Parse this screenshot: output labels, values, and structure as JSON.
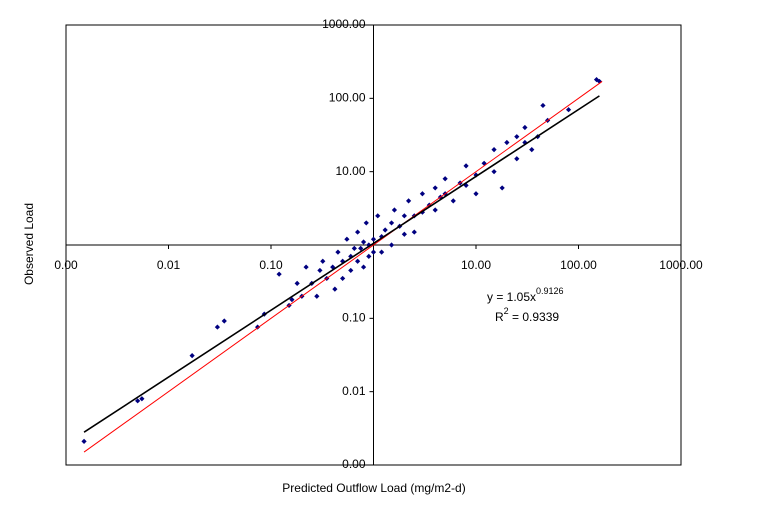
{
  "chart_data": {
    "type": "scatter",
    "xlabel": "Predicted Outflow Load  (mg/m2-d)",
    "ylabel": "Observed Load",
    "log_x": true,
    "log_y": true,
    "axes_cross": [
      1,
      1
    ],
    "xlim": [
      0.001,
      1000
    ],
    "ylim": [
      0.001,
      1000
    ],
    "xticks": [
      {
        "value": 0.001,
        "label": "0.00"
      },
      {
        "value": 0.01,
        "label": "0.01"
      },
      {
        "value": 0.1,
        "label": "0.10"
      },
      {
        "value": 10,
        "label": "10.00"
      },
      {
        "value": 100,
        "label": "100.00"
      },
      {
        "value": 1000,
        "label": "1000.00"
      }
    ],
    "yticks": [
      {
        "value": 0.001,
        "label": "0.00"
      },
      {
        "value": 0.01,
        "label": "0.01"
      },
      {
        "value": 0.1,
        "label": "0.10"
      },
      {
        "value": 10,
        "label": "10.00"
      },
      {
        "value": 100,
        "label": "100.00"
      },
      {
        "value": 1000,
        "label": "1000.00"
      }
    ],
    "series": [
      {
        "color": "#000080",
        "x": [
          0.0015,
          0.005,
          0.0055,
          0.017,
          0.03,
          0.035,
          0.074,
          0.086,
          0.12,
          0.15,
          0.16,
          0.18,
          0.2,
          0.22,
          0.25,
          0.28,
          0.3,
          0.32,
          0.35,
          0.4,
          0.42,
          0.45,
          0.5,
          0.5,
          0.55,
          0.6,
          0.6,
          0.65,
          0.7,
          0.7,
          0.75,
          0.8,
          0.8,
          0.85,
          0.9,
          0.9,
          1.0,
          1.0,
          1.1,
          1.2,
          1.2,
          1.3,
          1.5,
          1.5,
          1.6,
          1.8,
          2.0,
          2.0,
          2.2,
          2.5,
          2.5,
          3.0,
          3.0,
          3.5,
          4.0,
          4.0,
          4.5,
          5.0,
          5.0,
          6.0,
          7.0,
          8.0,
          8.0,
          10,
          10,
          12,
          15,
          15,
          18,
          20,
          25,
          25,
          30,
          30,
          35,
          40,
          45,
          50,
          80,
          150,
          160
        ],
        "values": [
          0.0021,
          0.0075,
          0.008,
          0.031,
          0.076,
          0.092,
          0.076,
          0.114,
          0.4,
          0.15,
          0.18,
          0.3,
          0.2,
          0.5,
          0.3,
          0.2,
          0.45,
          0.6,
          0.35,
          0.5,
          0.25,
          0.8,
          0.6,
          0.35,
          1.2,
          0.7,
          0.45,
          0.9,
          1.5,
          0.6,
          0.9,
          1.1,
          0.5,
          2.0,
          1.0,
          0.7,
          1.2,
          0.8,
          2.5,
          1.3,
          0.8,
          1.6,
          2.0,
          1.0,
          3.0,
          1.8,
          2.5,
          1.4,
          4.0,
          2.5,
          1.5,
          5.0,
          2.8,
          3.5,
          6.0,
          3.0,
          4.5,
          5.0,
          8.0,
          4.0,
          7.0,
          6.5,
          12,
          9,
          5,
          13,
          10,
          20,
          6,
          25,
          15,
          30,
          25,
          40,
          20,
          30,
          80,
          50,
          70,
          180,
          170
        ]
      },
      {
        "type": "line",
        "color": "#ff0000",
        "x": [
          0.0015,
          170
        ],
        "values": [
          0.0015,
          170
        ]
      },
      {
        "type": "line",
        "color": "#000000",
        "x": [
          0.0015,
          160
        ],
        "values": [
          0.0028,
          108
        ]
      }
    ],
    "annotations": {
      "equation": "y = 1.05x",
      "exponent": "0.9126",
      "r_symbol": "R",
      "r_power": "2",
      "r_value": " = 0.9339"
    }
  }
}
